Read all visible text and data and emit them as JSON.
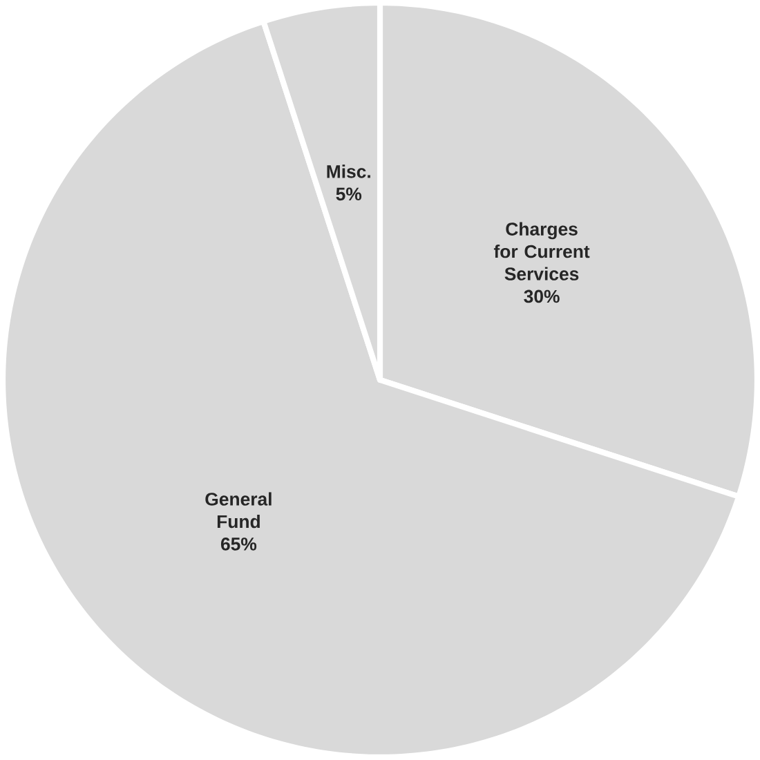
{
  "chart_data": {
    "type": "pie",
    "categories": [
      "Charges for Current Services",
      "General Fund",
      "Misc."
    ],
    "values": [
      30,
      65,
      5
    ],
    "value_labels": [
      "30%",
      "65%",
      "5%"
    ],
    "colors": [
      "#d9d9d9",
      "#d9d9d9",
      "#d9d9d9"
    ]
  }
}
